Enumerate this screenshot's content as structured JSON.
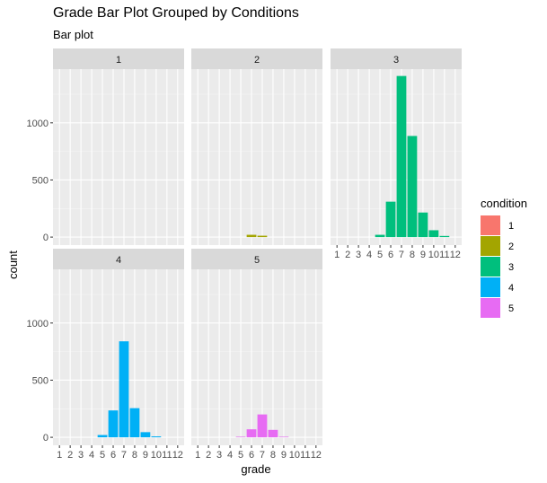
{
  "chart_data": {
    "type": "bar",
    "title": "Grade Bar Plot Grouped by Conditions",
    "subtitle": "Bar plot",
    "xlabel": "grade",
    "ylabel": "count",
    "x": [
      1,
      2,
      3,
      4,
      5,
      6,
      7,
      8,
      9,
      10,
      11,
      12
    ],
    "x_tick_labels": [
      "1",
      "2",
      "3",
      "4",
      "5",
      "6",
      "7",
      "8",
      "9",
      "10",
      "11",
      "12"
    ],
    "y_ticks": [
      0,
      500,
      1000
    ],
    "ylim": [
      -70,
      1470
    ],
    "grid": true,
    "legend": {
      "title": "condition",
      "placement": "right",
      "entries": [
        {
          "label": "1",
          "color": "#F8766D"
        },
        {
          "label": "2",
          "color": "#A3A500"
        },
        {
          "label": "3",
          "color": "#00BF7D"
        },
        {
          "label": "4",
          "color": "#00B0F6"
        },
        {
          "label": "5",
          "color": "#E76BF3"
        }
      ]
    },
    "facets": [
      {
        "label": "1",
        "color": "#F8766D",
        "values": [
          0,
          0,
          0,
          0,
          0,
          0,
          0,
          0,
          0,
          0,
          0,
          0
        ]
      },
      {
        "label": "2",
        "color": "#A3A500",
        "values": [
          0,
          0,
          0,
          0,
          0,
          20,
          12,
          0,
          0,
          0,
          0,
          0
        ]
      },
      {
        "label": "3",
        "color": "#00BF7D",
        "values": [
          0,
          0,
          0,
          0,
          20,
          310,
          1410,
          885,
          215,
          60,
          10,
          0
        ]
      },
      {
        "label": "4",
        "color": "#00B0F6",
        "values": [
          0,
          0,
          0,
          0,
          20,
          235,
          840,
          255,
          45,
          8,
          0,
          0
        ]
      },
      {
        "label": "5",
        "color": "#E76BF3",
        "values": [
          0,
          0,
          0,
          0,
          5,
          70,
          200,
          65,
          5,
          0,
          0,
          0
        ]
      }
    ]
  }
}
